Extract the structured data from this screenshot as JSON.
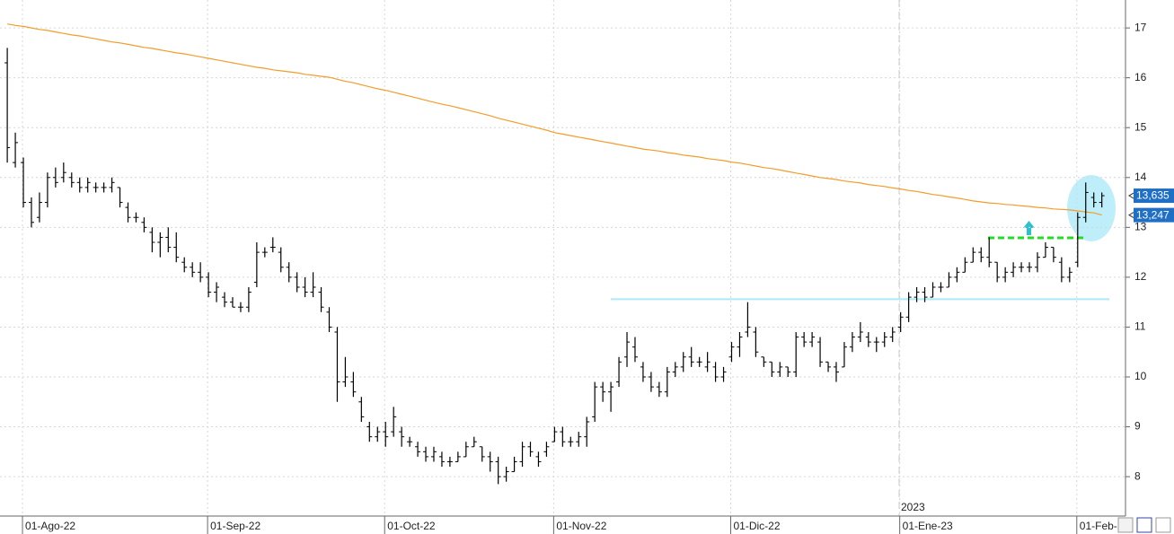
{
  "chart_data": {
    "type": "ohlc",
    "categories": [
      null,
      null,
      "01-Ago-22",
      null,
      null,
      null,
      null,
      null,
      null,
      null,
      null,
      null,
      null,
      null,
      null,
      null,
      null,
      null,
      null,
      null,
      null,
      null,
      null,
      null,
      null,
      "01-Sep-22",
      null,
      null,
      null,
      null,
      null,
      null,
      null,
      null,
      null,
      null,
      null,
      null,
      null,
      null,
      null,
      null,
      null,
      null,
      null,
      null,
      null,
      "01-Oct-22",
      null,
      null,
      null,
      null,
      null,
      null,
      null,
      null,
      null,
      null,
      null,
      null,
      null,
      null,
      null,
      null,
      null,
      null,
      null,
      null,
      "01-Nov-22",
      null,
      null,
      null,
      null,
      null,
      null,
      null,
      null,
      null,
      null,
      null,
      null,
      null,
      null,
      null,
      null,
      null,
      null,
      null,
      null,
      null,
      "01-Dic-22",
      null,
      null,
      null,
      null,
      null,
      null,
      null,
      null,
      null,
      null,
      null,
      null,
      null,
      null,
      null,
      null,
      null,
      null,
      null,
      null,
      "01-Ene-23",
      null,
      null,
      null,
      null,
      null,
      null,
      null,
      null,
      null,
      null,
      null,
      null,
      null,
      null,
      null,
      null,
      null,
      null,
      null,
      null,
      null,
      "01-Feb-",
      null,
      null,
      null
    ],
    "open": [
      16.3,
      14.3,
      14.3,
      13.5,
      13.2,
      13.5,
      14.0,
      14.0,
      14.0,
      13.9,
      13.8,
      13.8,
      13.8,
      13.8,
      13.8,
      13.4,
      13.2,
      13.1,
      12.9,
      12.7,
      12.8,
      12.6,
      12.3,
      12.2,
      12.1,
      12.0,
      11.7,
      11.6,
      11.5,
      11.4,
      11.4,
      11.9,
      12.5,
      12.6,
      12.5,
      12.2,
      12.0,
      11.8,
      11.7,
      11.7,
      11.3,
      10.9,
      9.9,
      9.9,
      9.5,
      9.0,
      8.8,
      8.9,
      8.9,
      8.9,
      8.7,
      8.6,
      8.5,
      8.4,
      8.4,
      8.3,
      8.3,
      8.4,
      8.6,
      8.6,
      8.4,
      8.3,
      8.0,
      8.1,
      8.3,
      8.6,
      8.4,
      8.5,
      8.7,
      8.9,
      8.7,
      8.7,
      8.8,
      9.2,
      9.8,
      9.7,
      9.9,
      10.4,
      10.6,
      10.2,
      10.0,
      9.8,
      9.7,
      10.1,
      10.2,
      10.4,
      10.3,
      10.2,
      10.2,
      10.0,
      10.4,
      10.6,
      10.9,
      10.9,
      10.4,
      10.3,
      10.1,
      10.2,
      10.1,
      10.8,
      10.7,
      10.7,
      10.3,
      10.2,
      10.2,
      10.6,
      10.8,
      10.8,
      10.7,
      10.7,
      10.8,
      11.0,
      11.2,
      11.6,
      11.7,
      11.6,
      11.8,
      11.8,
      12.0,
      12.1,
      12.3,
      12.5,
      12.4,
      12.3,
      12.0,
      12.1,
      12.2,
      12.2,
      12.2,
      12.4,
      12.6,
      12.3,
      12.0,
      12.3,
      13.2,
      13.6,
      13.5
    ],
    "high": [
      16.6,
      14.9,
      14.4,
      13.6,
      13.7,
      14.1,
      14.2,
      14.3,
      14.1,
      14.0,
      14.0,
      13.9,
      13.9,
      14.0,
      13.8,
      13.5,
      13.3,
      13.2,
      13.0,
      12.9,
      13.0,
      12.9,
      12.4,
      12.3,
      12.3,
      12.1,
      11.9,
      11.7,
      11.6,
      11.5,
      11.8,
      12.7,
      12.6,
      12.8,
      12.6,
      12.3,
      12.1,
      12.0,
      12.1,
      11.8,
      11.4,
      11.0,
      10.4,
      10.1,
      9.6,
      9.1,
      9.0,
      9.1,
      9.4,
      9.0,
      8.8,
      8.7,
      8.6,
      8.6,
      8.5,
      8.4,
      8.5,
      8.7,
      8.8,
      8.6,
      8.5,
      8.4,
      8.2,
      8.4,
      8.7,
      8.7,
      8.5,
      8.7,
      9.0,
      9.0,
      8.8,
      8.9,
      9.2,
      9.9,
      9.9,
      9.9,
      10.4,
      10.9,
      10.8,
      10.3,
      10.1,
      9.9,
      10.2,
      10.3,
      10.5,
      10.6,
      10.4,
      10.5,
      10.3,
      10.2,
      10.7,
      10.9,
      11.5,
      11.0,
      10.4,
      10.3,
      10.3,
      10.2,
      10.9,
      10.9,
      10.9,
      10.8,
      10.3,
      10.3,
      10.7,
      10.9,
      11.1,
      10.9,
      10.8,
      10.9,
      11.0,
      11.3,
      11.7,
      11.8,
      11.8,
      11.9,
      11.9,
      12.1,
      12.2,
      12.4,
      12.6,
      12.6,
      12.8,
      12.3,
      12.2,
      12.3,
      12.3,
      12.3,
      12.5,
      12.7,
      12.6,
      12.4,
      12.2,
      13.3,
      13.9,
      13.7,
      13.7
    ],
    "low": [
      14.3,
      14.2,
      13.4,
      13.0,
      13.1,
      13.4,
      13.8,
      13.9,
      13.8,
      13.7,
      13.7,
      13.7,
      13.7,
      13.7,
      13.4,
      13.1,
      13.1,
      12.9,
      12.5,
      12.4,
      12.5,
      12.3,
      12.1,
      12.0,
      11.9,
      11.6,
      11.5,
      11.4,
      11.4,
      11.3,
      11.3,
      11.8,
      12.4,
      12.5,
      12.1,
      11.9,
      11.7,
      11.6,
      11.6,
      11.3,
      10.9,
      9.5,
      9.8,
      9.6,
      9.1,
      8.7,
      8.7,
      8.6,
      8.8,
      8.6,
      8.6,
      8.4,
      8.3,
      8.3,
      8.2,
      8.2,
      8.3,
      8.4,
      8.6,
      8.3,
      8.1,
      7.85,
      7.9,
      8.1,
      8.2,
      8.4,
      8.2,
      8.4,
      8.7,
      8.6,
      8.6,
      8.6,
      8.6,
      9.1,
      9.5,
      9.3,
      9.8,
      10.2,
      10.3,
      9.9,
      9.7,
      9.6,
      9.6,
      10.0,
      10.1,
      10.2,
      10.2,
      10.1,
      9.9,
      9.9,
      10.3,
      10.4,
      10.8,
      10.4,
      10.2,
      10.0,
      10.0,
      10.0,
      10.0,
      10.6,
      10.6,
      10.2,
      10.1,
      9.9,
      10.2,
      10.5,
      10.7,
      10.6,
      10.5,
      10.6,
      10.7,
      10.9,
      11.1,
      11.5,
      11.5,
      11.6,
      11.7,
      11.8,
      11.9,
      12.1,
      12.3,
      12.3,
      12.2,
      11.9,
      11.9,
      12.0,
      12.1,
      12.1,
      12.1,
      12.4,
      12.3,
      11.9,
      11.9,
      12.2,
      13.1,
      13.4,
      13.4
    ],
    "close": [
      14.6,
      14.7,
      13.5,
      13.1,
      13.5,
      14.0,
      13.9,
      14.1,
      13.9,
      13.8,
      13.9,
      13.8,
      13.8,
      13.9,
      13.5,
      13.2,
      13.2,
      13.0,
      12.7,
      12.8,
      12.6,
      12.4,
      12.2,
      12.1,
      12.0,
      11.7,
      11.8,
      11.5,
      11.4,
      11.4,
      11.7,
      12.5,
      12.5,
      12.6,
      12.2,
      12.0,
      11.8,
      11.7,
      11.8,
      11.4,
      11.0,
      9.9,
      10.0,
      9.7,
      9.2,
      8.8,
      8.9,
      8.8,
      9.2,
      8.8,
      8.7,
      8.5,
      8.4,
      8.5,
      8.3,
      8.3,
      8.4,
      8.6,
      8.7,
      8.4,
      8.3,
      8.0,
      8.1,
      8.3,
      8.6,
      8.5,
      8.3,
      8.6,
      8.9,
      8.7,
      8.7,
      8.8,
      9.1,
      9.8,
      9.7,
      9.8,
      10.3,
      10.7,
      10.4,
      10.0,
      9.8,
      9.7,
      10.1,
      10.2,
      10.4,
      10.3,
      10.3,
      10.3,
      10.0,
      10.1,
      10.6,
      10.8,
      11.0,
      10.5,
      10.3,
      10.1,
      10.2,
      10.1,
      10.8,
      10.7,
      10.8,
      10.3,
      10.2,
      10.1,
      10.6,
      10.8,
      10.9,
      10.7,
      10.7,
      10.8,
      10.9,
      11.2,
      11.6,
      11.7,
      11.6,
      11.8,
      11.8,
      12.0,
      12.1,
      12.3,
      12.5,
      12.4,
      12.3,
      12.0,
      12.1,
      12.2,
      12.2,
      12.2,
      12.4,
      12.6,
      12.4,
      12.0,
      12.1,
      13.2,
      13.7,
      13.5,
      13.635
    ],
    "bar_color": "#000000",
    "moving_average": {
      "color": "#f39c2b",
      "values": [
        17.08,
        17.05,
        17.03,
        17.0,
        16.97,
        16.95,
        16.92,
        16.89,
        16.86,
        16.84,
        16.81,
        16.78,
        16.75,
        16.72,
        16.7,
        16.67,
        16.64,
        16.61,
        16.59,
        16.56,
        16.53,
        16.5,
        16.48,
        16.45,
        16.42,
        16.39,
        16.36,
        16.33,
        16.3,
        16.27,
        16.24,
        16.21,
        16.19,
        16.16,
        16.14,
        16.12,
        16.1,
        16.07,
        16.05,
        16.03,
        16.01,
        15.97,
        15.93,
        15.9,
        15.86,
        15.82,
        15.78,
        15.75,
        15.71,
        15.67,
        15.63,
        15.59,
        15.55,
        15.51,
        15.47,
        15.44,
        15.4,
        15.36,
        15.32,
        15.28,
        15.24,
        15.19,
        15.15,
        15.11,
        15.07,
        15.03,
        14.99,
        14.95,
        14.9,
        14.87,
        14.84,
        14.81,
        14.78,
        14.75,
        14.72,
        14.69,
        14.66,
        14.63,
        14.6,
        14.57,
        14.55,
        14.53,
        14.5,
        14.48,
        14.45,
        14.43,
        14.41,
        14.38,
        14.36,
        14.34,
        14.31,
        14.29,
        14.26,
        14.23,
        14.2,
        14.18,
        14.15,
        14.12,
        14.09,
        14.06,
        14.03,
        14.0,
        13.98,
        13.96,
        13.93,
        13.91,
        13.89,
        13.86,
        13.84,
        13.82,
        13.79,
        13.77,
        13.74,
        13.72,
        13.69,
        13.66,
        13.64,
        13.61,
        13.59,
        13.56,
        13.53,
        13.51,
        13.49,
        13.48,
        13.46,
        13.45,
        13.43,
        13.42,
        13.4,
        13.39,
        13.37,
        13.36,
        13.35,
        13.33,
        13.31,
        13.29,
        13.247
      ]
    },
    "price_labels": [
      {
        "value": 13.635,
        "label": "13,635"
      },
      {
        "value": 13.247,
        "label": "13,247"
      }
    ],
    "support_level": 11.56,
    "resistance_level": 12.79,
    "year_marker": "2023",
    "ylim": [
      7.21,
      17.56
    ],
    "yticks": [
      8,
      9,
      10,
      11,
      12,
      13,
      14,
      15,
      16,
      17
    ],
    "grid": true
  }
}
